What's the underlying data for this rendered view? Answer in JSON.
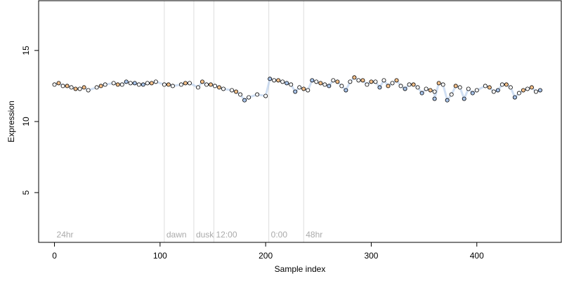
{
  "chart_data": {
    "type": "scatter",
    "title": "",
    "xlabel": "Sample index",
    "ylabel": "Expression",
    "xlim": [
      -15,
      480
    ],
    "ylim": [
      1.5,
      18.5
    ],
    "x_ticks": [
      0,
      100,
      200,
      300,
      400
    ],
    "y_ticks": [
      5,
      10,
      15
    ],
    "grid": false,
    "regions": [
      {
        "label": "24hr",
        "x": 0
      },
      {
        "label": "dawn",
        "x": 104
      },
      {
        "label": "dusk",
        "x": 132
      },
      {
        "label": "12:00",
        "x": 151
      },
      {
        "label": "0:00",
        "x": 203
      },
      {
        "label": "48hr",
        "x": 236
      }
    ],
    "colors": {
      "orange": "#f5c08a",
      "blue": "#a9c4ea",
      "white": "#ffffff",
      "band": "#a9c4ea",
      "divider": "#dddddd",
      "region_text": "#aaaaaa"
    },
    "series": [
      {
        "color": "white",
        "values": [
          [
            0,
            12.6
          ],
          [
            8,
            12.5
          ],
          [
            16,
            12.4
          ],
          [
            24,
            12.3
          ],
          [
            32,
            12.2
          ],
          [
            40,
            12.4
          ],
          [
            48,
            12.6
          ],
          [
            56,
            12.7
          ],
          [
            64,
            12.6
          ],
          [
            72,
            12.7
          ],
          [
            80,
            12.6
          ],
          [
            88,
            12.7
          ],
          [
            96,
            12.8
          ],
          [
            104,
            12.6
          ],
          [
            112,
            12.5
          ],
          [
            120,
            12.6
          ],
          [
            128,
            12.7
          ],
          [
            136,
            12.4
          ],
          [
            144,
            12.6
          ],
          [
            152,
            12.5
          ],
          [
            160,
            12.3
          ],
          [
            168,
            12.2
          ],
          [
            176,
            11.9
          ],
          [
            184,
            11.7
          ],
          [
            192,
            11.9
          ],
          [
            200,
            11.8
          ],
          [
            208,
            12.9
          ],
          [
            216,
            12.8
          ],
          [
            224,
            12.6
          ],
          [
            232,
            12.4
          ],
          [
            240,
            12.2
          ],
          [
            248,
            12.8
          ],
          [
            256,
            12.6
          ],
          [
            264,
            12.9
          ],
          [
            272,
            12.5
          ],
          [
            280,
            12.8
          ],
          [
            288,
            12.9
          ],
          [
            296,
            12.6
          ],
          [
            304,
            12.8
          ],
          [
            312,
            12.9
          ],
          [
            320,
            12.7
          ],
          [
            328,
            12.5
          ],
          [
            336,
            12.6
          ],
          [
            344,
            12.4
          ],
          [
            352,
            12.3
          ],
          [
            360,
            12.1
          ],
          [
            368,
            12.6
          ],
          [
            376,
            11.9
          ],
          [
            384,
            12.4
          ],
          [
            392,
            12.3
          ],
          [
            400,
            12.2
          ],
          [
            408,
            12.5
          ],
          [
            416,
            12.1
          ],
          [
            424,
            12.6
          ],
          [
            432,
            12.4
          ],
          [
            440,
            12.0
          ],
          [
            448,
            12.3
          ],
          [
            456,
            12.1
          ]
        ]
      },
      {
        "color": "orange",
        "values": [
          [
            4,
            12.7
          ],
          [
            12,
            12.5
          ],
          [
            20,
            12.3
          ],
          [
            28,
            12.4
          ],
          [
            44,
            12.5
          ],
          [
            60,
            12.6
          ],
          [
            92,
            12.7
          ],
          [
            108,
            12.6
          ],
          [
            124,
            12.7
          ],
          [
            140,
            12.8
          ],
          [
            148,
            12.6
          ],
          [
            156,
            12.4
          ],
          [
            172,
            12.1
          ],
          [
            212,
            12.9
          ],
          [
            236,
            12.3
          ],
          [
            252,
            12.7
          ],
          [
            268,
            12.8
          ],
          [
            284,
            13.1
          ],
          [
            292,
            12.9
          ],
          [
            300,
            12.8
          ],
          [
            316,
            12.5
          ],
          [
            324,
            12.9
          ],
          [
            340,
            12.6
          ],
          [
            356,
            12.2
          ],
          [
            364,
            12.7
          ],
          [
            380,
            12.5
          ],
          [
            412,
            12.4
          ],
          [
            428,
            12.6
          ],
          [
            444,
            12.2
          ],
          [
            452,
            12.4
          ]
        ]
      },
      {
        "color": "blue",
        "values": [
          [
            68,
            12.8
          ],
          [
            76,
            12.7
          ],
          [
            84,
            12.6
          ],
          [
            180,
            11.5
          ],
          [
            204,
            13.0
          ],
          [
            220,
            12.7
          ],
          [
            228,
            12.1
          ],
          [
            244,
            12.9
          ],
          [
            260,
            12.5
          ],
          [
            276,
            12.2
          ],
          [
            308,
            12.4
          ],
          [
            332,
            12.3
          ],
          [
            348,
            12.0
          ],
          [
            360,
            11.6
          ],
          [
            372,
            11.5
          ],
          [
            388,
            11.6
          ],
          [
            396,
            12.0
          ],
          [
            420,
            12.2
          ],
          [
            436,
            11.7
          ],
          [
            460,
            12.2
          ]
        ]
      }
    ]
  }
}
